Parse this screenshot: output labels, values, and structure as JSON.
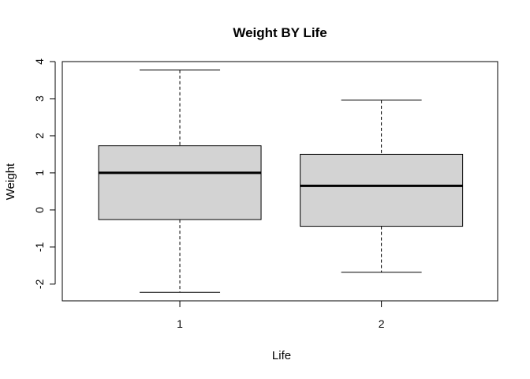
{
  "chart_data": {
    "type": "boxplot",
    "title": "Weight BY Life",
    "xlabel": "Life",
    "ylabel": "Weight",
    "categories": [
      "1",
      "2"
    ],
    "yticks": [
      "-2",
      "-1",
      "0",
      "1",
      "2",
      "3",
      "4"
    ],
    "ylim": [
      -2.45,
      4.0
    ],
    "grid": false,
    "legend": "none",
    "box_fill": "#d3d3d3",
    "stroke": "#000000",
    "boxes": [
      {
        "category": "1",
        "whisker_low": -2.22,
        "q1": -0.26,
        "median": 1.0,
        "q3": 1.73,
        "whisker_high": 3.77
      },
      {
        "category": "2",
        "whisker_low": -1.68,
        "q1": -0.44,
        "median": 0.65,
        "q3": 1.5,
        "whisker_high": 2.96
      }
    ]
  }
}
